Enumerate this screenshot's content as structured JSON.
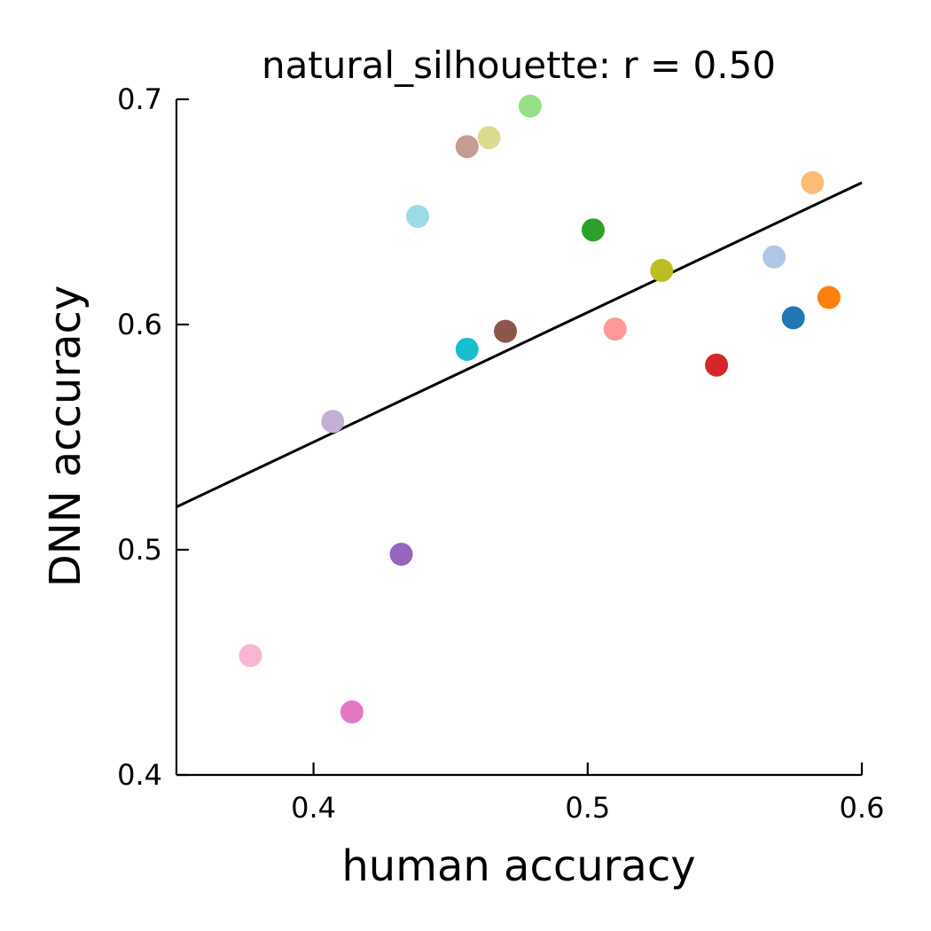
{
  "chart_data": {
    "type": "scatter",
    "title": "natural_silhouette: r = 0.50",
    "xlabel": "human accuracy",
    "ylabel": "DNN accuracy",
    "xlim": [
      0.35,
      0.6
    ],
    "ylim": [
      0.4,
      0.7
    ],
    "xticks": [
      "0.4",
      "0.5",
      "0.6"
    ],
    "yticks": [
      "0.4",
      "0.5",
      "0.6",
      "0.7"
    ],
    "xtick_values": [
      0.4,
      0.5,
      0.6
    ],
    "ytick_values": [
      0.4,
      0.5,
      0.6,
      0.7
    ],
    "grid": false,
    "points": [
      {
        "x": 0.575,
        "y": 0.603,
        "color": "#1f77b4"
      },
      {
        "x": 0.588,
        "y": 0.612,
        "color": "#ff7f0e"
      },
      {
        "x": 0.502,
        "y": 0.642,
        "color": "#2ca02c"
      },
      {
        "x": 0.547,
        "y": 0.582,
        "color": "#d62728"
      },
      {
        "x": 0.432,
        "y": 0.498,
        "color": "#9467bd"
      },
      {
        "x": 0.47,
        "y": 0.597,
        "color": "#8c564b"
      },
      {
        "x": 0.414,
        "y": 0.428,
        "color": "#e377c2"
      },
      {
        "x": 0.527,
        "y": 0.624,
        "color": "#bcbd22"
      },
      {
        "x": 0.456,
        "y": 0.589,
        "color": "#17becf"
      },
      {
        "x": 0.568,
        "y": 0.63,
        "color": "#aec7e8"
      },
      {
        "x": 0.582,
        "y": 0.663,
        "color": "#ffbb78"
      },
      {
        "x": 0.479,
        "y": 0.697,
        "color": "#98df8a"
      },
      {
        "x": 0.51,
        "y": 0.598,
        "color": "#ff9896"
      },
      {
        "x": 0.407,
        "y": 0.557,
        "color": "#c5b0d5"
      },
      {
        "x": 0.456,
        "y": 0.679,
        "color": "#c49c94"
      },
      {
        "x": 0.377,
        "y": 0.453,
        "color": "#f7b6d2"
      },
      {
        "x": 0.464,
        "y": 0.683,
        "color": "#dbdb8d"
      },
      {
        "x": 0.438,
        "y": 0.648,
        "color": "#9edae5"
      }
    ],
    "fit_line": {
      "x": [
        0.35,
        0.6
      ],
      "y": [
        0.519,
        0.663
      ],
      "color": "#000000"
    }
  }
}
